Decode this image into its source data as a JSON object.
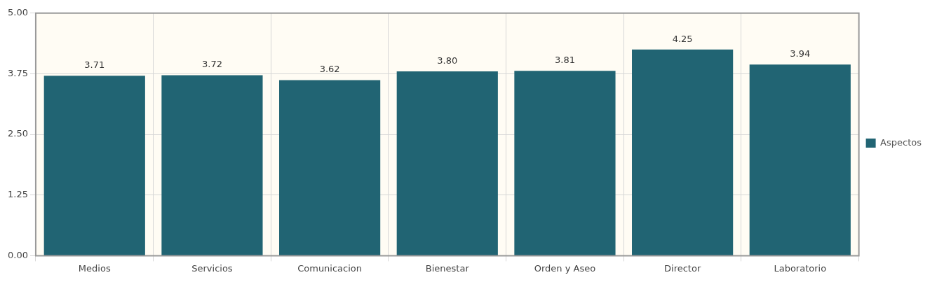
{
  "chart_data": {
    "type": "bar",
    "categories": [
      "Medios",
      "Servicios",
      "Comunicacion",
      "Bienestar",
      "Orden y Aseo",
      "Director",
      "Laboratorio"
    ],
    "series": [
      {
        "name": "Aspectos",
        "color": "#216473",
        "values": [
          3.71,
          3.72,
          3.62,
          3.8,
          3.81,
          4.25,
          3.94
        ],
        "value_labels": [
          "3.71",
          "3.72",
          "3.62",
          "3.80",
          "3.81",
          "4.25",
          "3.94"
        ]
      }
    ],
    "ylim": [
      0,
      5
    ],
    "yticks": [
      {
        "value": 0,
        "label": "0.00"
      },
      {
        "value": 1.25,
        "label": "1.25"
      },
      {
        "value": 2.5,
        "label": "2.50"
      },
      {
        "value": 3.75,
        "label": "3.75"
      },
      {
        "value": 5,
        "label": "5.00"
      }
    ],
    "grid": true,
    "legend": "right"
  }
}
